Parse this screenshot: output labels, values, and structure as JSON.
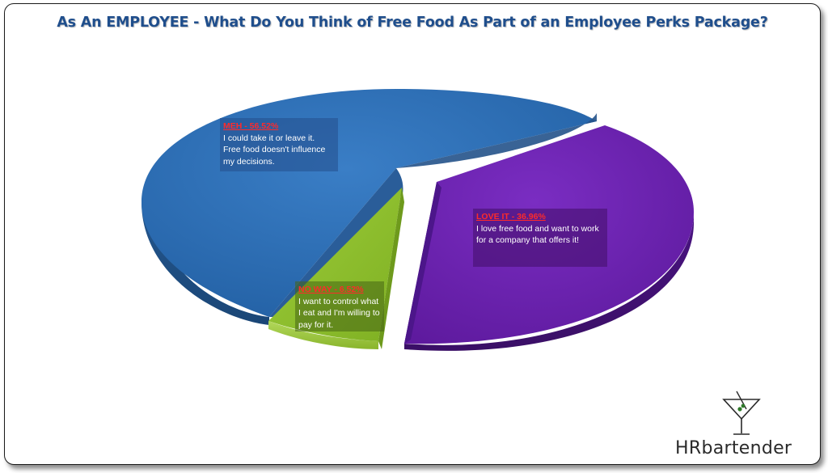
{
  "chart_data": {
    "type": "pie",
    "title": "As An EMPLOYEE - What Do You Think of Free Food As Part of an Employee Perks Package?",
    "slices": [
      {
        "label": "MEH - 56.52%",
        "value": 56.52,
        "description": "I could take it or leave it. Free food doesn't influence my decisions.",
        "color": "#2f6fb5"
      },
      {
        "label": "LOVE IT - 36.96%",
        "value": 36.96,
        "description": "I love free food and want to work for a company that offers it!",
        "color": "#6b22b0"
      },
      {
        "label": "NO WAY - 6.52%",
        "value": 6.52,
        "description": "I want to control what I eat and I'm willing to pay for it.",
        "color": "#8cbf2a"
      }
    ]
  },
  "logo": {
    "hr": "HR",
    "rest": "bartender"
  }
}
